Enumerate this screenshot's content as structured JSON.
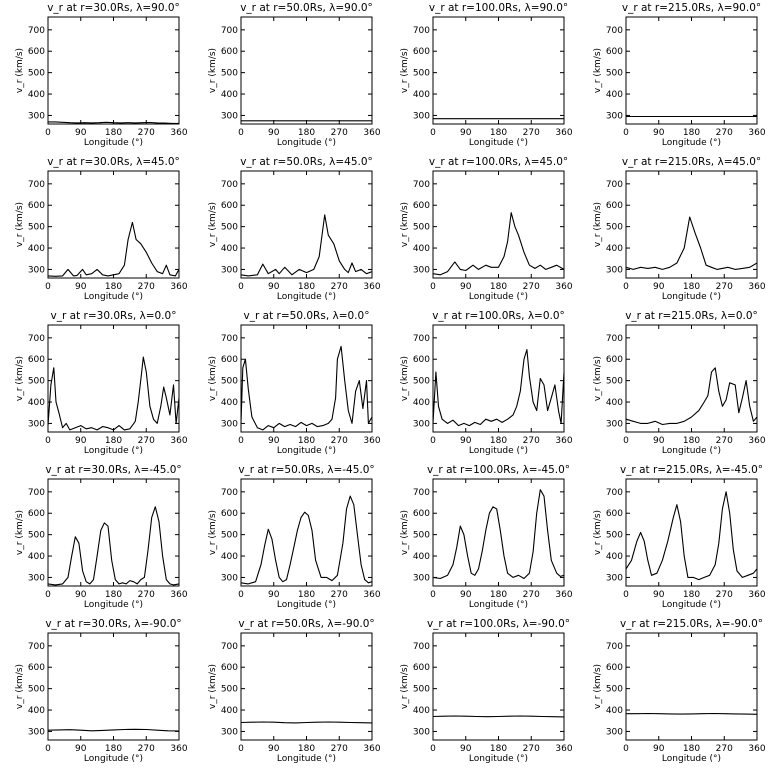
{
  "colors": {
    "background": "#ffffff",
    "line": "#000000",
    "axes": "#000000"
  },
  "chart_data": {
    "type": "line",
    "layout": "grid",
    "rows": 5,
    "cols": 4,
    "xlabel": "Longitude (°)",
    "ylabel": "v_r (km/s)",
    "xlim": [
      0,
      360
    ],
    "ylim": [
      260,
      760
    ],
    "xticks": [
      0,
      90,
      180,
      270,
      360
    ],
    "yticks": [
      300,
      400,
      500,
      600,
      700
    ],
    "panels": [
      {
        "title": "v_r at r=30.0Rs, λ=90.0°",
        "x": [
          0,
          20,
          40,
          60,
          80,
          100,
          120,
          140,
          160,
          180,
          200,
          220,
          240,
          260,
          280,
          300,
          320,
          340,
          360
        ],
        "y": [
          270,
          270,
          268,
          266,
          265,
          266,
          265,
          266,
          268,
          266,
          265,
          266,
          265,
          266,
          267,
          265,
          264,
          263,
          263
        ]
      },
      {
        "title": "v_r at r=50.0Rs, λ=90.0°",
        "x": [
          0,
          90,
          180,
          270,
          360
        ],
        "y": [
          275,
          275,
          275,
          275,
          275
        ]
      },
      {
        "title": "v_r at r=100.0Rs, λ=90.0°",
        "x": [
          0,
          90,
          180,
          270,
          360
        ],
        "y": [
          285,
          285,
          285,
          285,
          285
        ]
      },
      {
        "title": "v_r at r=215.0Rs, λ=90.0°",
        "x": [
          0,
          90,
          180,
          270,
          360
        ],
        "y": [
          295,
          295,
          295,
          295,
          295
        ]
      },
      {
        "title": "v_r at r=30.0Rs, λ=45.0°",
        "x": [
          0,
          20,
          40,
          55,
          70,
          80,
          95,
          105,
          120,
          135,
          150,
          165,
          180,
          195,
          210,
          220,
          232,
          242,
          255,
          270,
          285,
          300,
          315,
          325,
          335,
          350,
          360
        ],
        "y": [
          270,
          268,
          270,
          300,
          270,
          272,
          300,
          275,
          280,
          300,
          275,
          270,
          275,
          280,
          320,
          440,
          520,
          440,
          420,
          380,
          330,
          290,
          280,
          320,
          275,
          270,
          300
        ]
      },
      {
        "title": "v_r at r=50.0Rs, λ=45.0°",
        "x": [
          0,
          20,
          45,
          60,
          75,
          95,
          105,
          120,
          140,
          160,
          180,
          200,
          215,
          230,
          240,
          255,
          270,
          285,
          295,
          305,
          315,
          330,
          345,
          360
        ],
        "y": [
          275,
          270,
          275,
          325,
          280,
          300,
          280,
          310,
          275,
          300,
          285,
          300,
          360,
          555,
          460,
          420,
          340,
          300,
          285,
          330,
          290,
          300,
          280,
          290
        ]
      },
      {
        "title": "v_r at r=100.0Rs, λ=45.0°",
        "x": [
          0,
          20,
          40,
          60,
          75,
          90,
          110,
          125,
          145,
          160,
          180,
          195,
          205,
          215,
          225,
          235,
          250,
          265,
          280,
          295,
          310,
          325,
          340,
          360
        ],
        "y": [
          280,
          275,
          290,
          335,
          300,
          295,
          320,
          300,
          320,
          310,
          310,
          360,
          430,
          565,
          500,
          460,
          380,
          320,
          305,
          320,
          300,
          310,
          320,
          300
        ]
      },
      {
        "title": "v_r at r=215.0Rs, λ=45.0°",
        "x": [
          0,
          20,
          40,
          60,
          80,
          100,
          120,
          140,
          160,
          175,
          190,
          205,
          220,
          235,
          250,
          265,
          280,
          300,
          320,
          340,
          360
        ],
        "y": [
          310,
          300,
          310,
          305,
          310,
          300,
          310,
          330,
          400,
          545,
          470,
          400,
          320,
          310,
          300,
          305,
          310,
          300,
          305,
          310,
          330
        ]
      },
      {
        "title": "v_r at r=30.0Rs, λ=0.0°",
        "x": [
          0,
          8,
          16,
          22,
          30,
          40,
          50,
          60,
          75,
          90,
          105,
          120,
          135,
          150,
          165,
          180,
          195,
          210,
          225,
          240,
          248,
          256,
          262,
          270,
          280,
          290,
          300,
          310,
          318,
          325,
          335,
          345,
          352,
          360
        ],
        "y": [
          290,
          480,
          560,
          400,
          350,
          280,
          300,
          270,
          280,
          290,
          275,
          280,
          270,
          285,
          280,
          270,
          290,
          270,
          275,
          310,
          400,
          520,
          610,
          540,
          380,
          320,
          300,
          380,
          470,
          420,
          340,
          480,
          300,
          420
        ]
      },
      {
        "title": "v_r at r=50.0Rs, λ=0.0°",
        "x": [
          0,
          5,
          12,
          20,
          30,
          45,
          60,
          75,
          90,
          105,
          120,
          135,
          150,
          165,
          180,
          195,
          210,
          225,
          240,
          250,
          260,
          265,
          275,
          285,
          295,
          305,
          315,
          325,
          335,
          345,
          350,
          360
        ],
        "y": [
          300,
          560,
          600,
          460,
          330,
          280,
          270,
          290,
          280,
          300,
          285,
          295,
          285,
          305,
          290,
          300,
          285,
          290,
          300,
          320,
          420,
          600,
          660,
          500,
          360,
          300,
          450,
          500,
          370,
          500,
          300,
          330
        ]
      },
      {
        "title": "v_r at r=100.0Rs, λ=0.0°",
        "x": [
          0,
          8,
          15,
          25,
          40,
          55,
          70,
          85,
          100,
          115,
          130,
          145,
          160,
          175,
          190,
          205,
          220,
          230,
          240,
          250,
          258,
          265,
          275,
          285,
          295,
          305,
          315,
          325,
          335,
          345,
          352,
          360
        ],
        "y": [
          300,
          540,
          380,
          320,
          300,
          315,
          290,
          300,
          290,
          305,
          295,
          320,
          310,
          320,
          305,
          320,
          340,
          380,
          450,
          600,
          645,
          520,
          400,
          360,
          510,
          480,
          360,
          420,
          480,
          360,
          300,
          540
        ]
      },
      {
        "title": "v_r at r=215.0Rs, λ=0.0°",
        "x": [
          0,
          20,
          40,
          60,
          80,
          100,
          120,
          140,
          160,
          180,
          200,
          215,
          225,
          235,
          245,
          255,
          265,
          275,
          285,
          300,
          310,
          320,
          330,
          340,
          350,
          360
        ],
        "y": [
          320,
          310,
          300,
          300,
          310,
          295,
          300,
          300,
          310,
          330,
          360,
          400,
          430,
          540,
          560,
          450,
          380,
          410,
          490,
          480,
          350,
          420,
          500,
          380,
          310,
          330
        ]
      },
      {
        "title": "v_r at r=30.0Rs, λ=-45.0°",
        "x": [
          0,
          20,
          40,
          55,
          65,
          75,
          85,
          95,
          105,
          115,
          125,
          135,
          145,
          155,
          165,
          175,
          185,
          195,
          205,
          215,
          225,
          235,
          245,
          255,
          265,
          275,
          285,
          295,
          305,
          315,
          325,
          335,
          345,
          360
        ],
        "y": [
          270,
          265,
          270,
          300,
          400,
          490,
          460,
          330,
          280,
          270,
          290,
          400,
          520,
          555,
          540,
          380,
          290,
          270,
          275,
          270,
          285,
          280,
          270,
          290,
          300,
          430,
          580,
          630,
          560,
          400,
          290,
          270,
          265,
          270
        ]
      },
      {
        "title": "v_r at r=50.0Rs, λ=-45.0°",
        "x": [
          0,
          20,
          40,
          55,
          65,
          75,
          85,
          95,
          105,
          115,
          125,
          135,
          145,
          155,
          165,
          175,
          185,
          195,
          205,
          220,
          235,
          250,
          265,
          280,
          290,
          300,
          310,
          320,
          330,
          340,
          350,
          360
        ],
        "y": [
          275,
          270,
          280,
          360,
          450,
          525,
          480,
          380,
          300,
          280,
          290,
          360,
          440,
          520,
          580,
          605,
          590,
          520,
          380,
          300,
          300,
          285,
          310,
          460,
          620,
          680,
          640,
          500,
          360,
          290,
          275,
          280
        ]
      },
      {
        "title": "v_r at r=100.0Rs, λ=-45.0°",
        "x": [
          0,
          20,
          40,
          55,
          65,
          75,
          85,
          95,
          105,
          115,
          125,
          135,
          145,
          155,
          165,
          175,
          185,
          195,
          205,
          220,
          235,
          250,
          265,
          275,
          285,
          295,
          305,
          315,
          325,
          340,
          350,
          360
        ],
        "y": [
          300,
          295,
          310,
          360,
          440,
          540,
          500,
          400,
          320,
          310,
          340,
          420,
          520,
          600,
          630,
          620,
          520,
          400,
          320,
          300,
          310,
          295,
          320,
          420,
          600,
          710,
          680,
          520,
          380,
          320,
          305,
          310
        ]
      },
      {
        "title": "v_r at r=215.0Rs, λ=-45.0°",
        "x": [
          0,
          15,
          30,
          40,
          50,
          60,
          70,
          85,
          100,
          115,
          130,
          140,
          150,
          160,
          170,
          185,
          200,
          215,
          230,
          245,
          255,
          265,
          275,
          285,
          295,
          305,
          320,
          335,
          350,
          360
        ],
        "y": [
          340,
          380,
          470,
          510,
          470,
          380,
          310,
          320,
          380,
          470,
          580,
          640,
          560,
          400,
          300,
          300,
          290,
          300,
          310,
          360,
          460,
          620,
          700,
          600,
          430,
          330,
          300,
          310,
          320,
          340
        ]
      },
      {
        "title": "v_r at r=30.0Rs, λ=-90.0°",
        "x": [
          0,
          30,
          60,
          90,
          120,
          150,
          180,
          210,
          240,
          270,
          300,
          330,
          360
        ],
        "y": [
          306,
          307,
          308,
          306,
          303,
          305,
          307,
          309,
          310,
          309,
          306,
          303,
          302
        ]
      },
      {
        "title": "v_r at r=50.0Rs, λ=-90.0°",
        "x": [
          0,
          30,
          60,
          90,
          120,
          150,
          180,
          210,
          240,
          270,
          300,
          330,
          360
        ],
        "y": [
          342,
          343,
          344,
          343,
          341,
          340,
          342,
          343,
          344,
          343,
          342,
          341,
          340
        ]
      },
      {
        "title": "v_r at r=100.0Rs, λ=-90.0°",
        "x": [
          0,
          30,
          60,
          90,
          120,
          150,
          180,
          210,
          240,
          270,
          300,
          330,
          360
        ],
        "y": [
          370,
          371,
          372,
          371,
          370,
          369,
          370,
          371,
          372,
          371,
          370,
          369,
          368
        ]
      },
      {
        "title": "v_r at r=215.0Rs, λ=-90.0°",
        "x": [
          0,
          30,
          60,
          90,
          120,
          150,
          180,
          210,
          240,
          270,
          300,
          330,
          360
        ],
        "y": [
          383,
          383,
          384,
          383,
          382,
          381,
          382,
          383,
          384,
          383,
          382,
          381,
          380
        ]
      }
    ]
  }
}
